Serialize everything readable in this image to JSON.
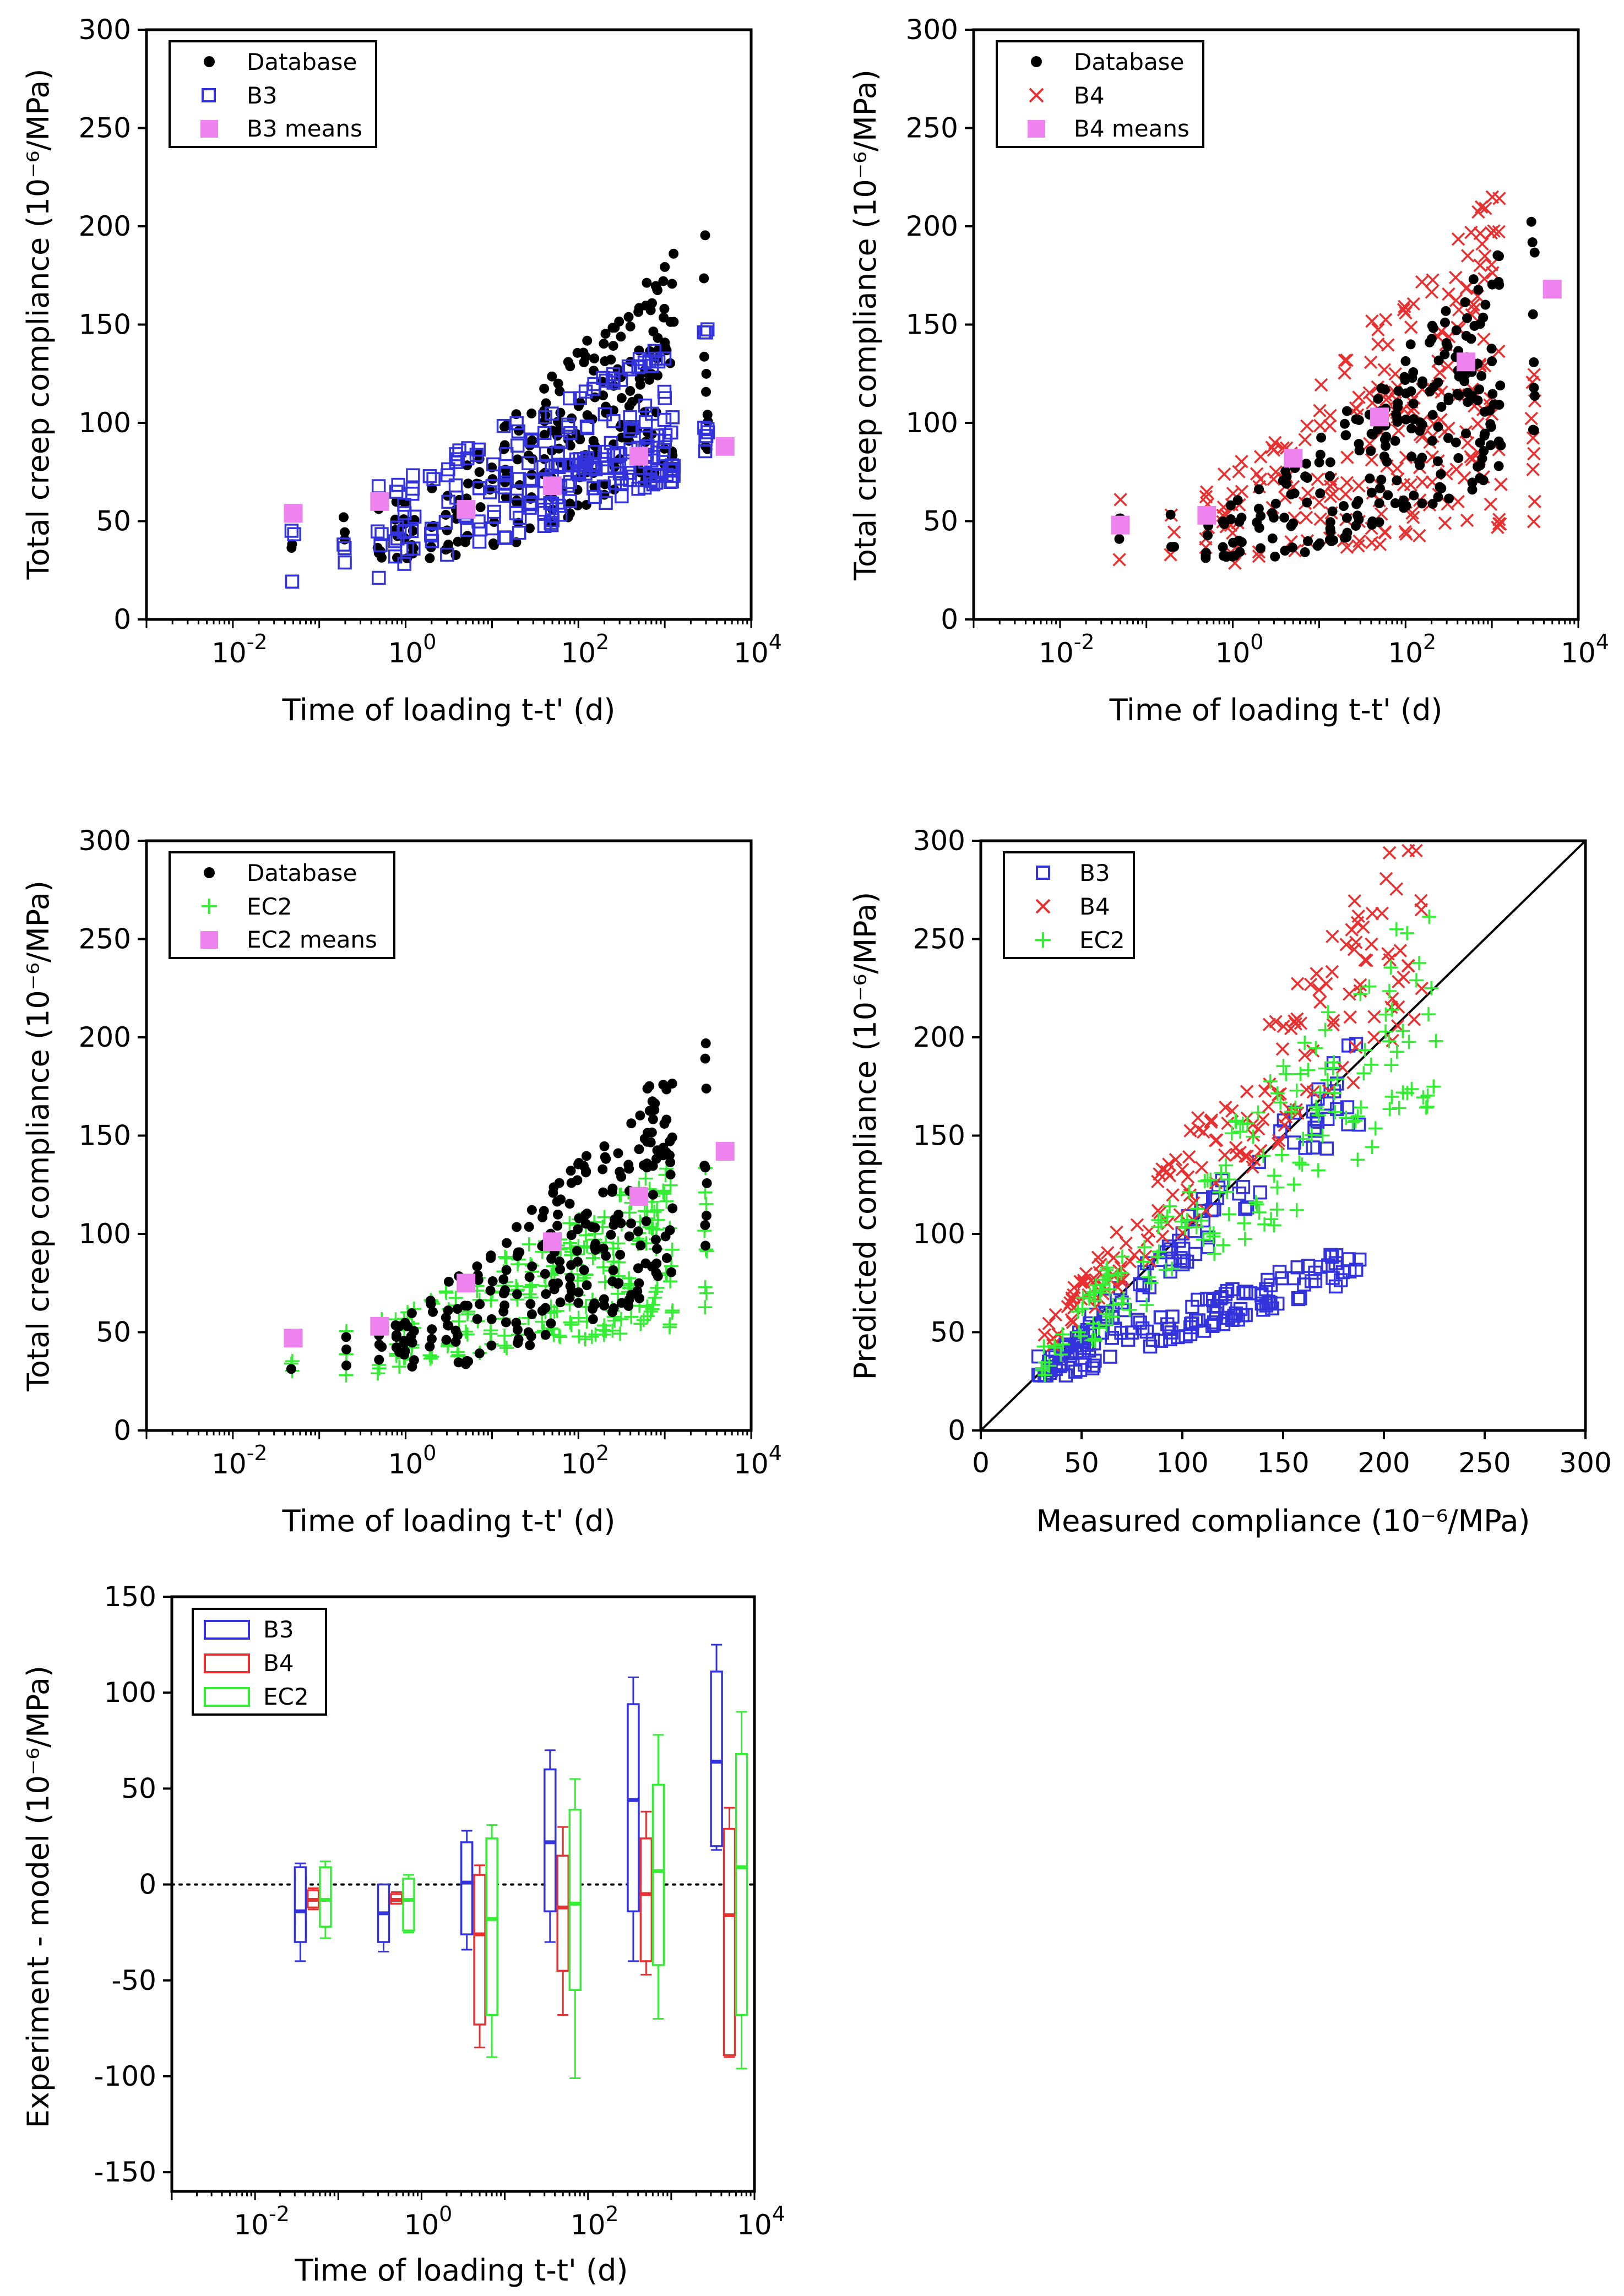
{
  "figure": {
    "marker_colors": {
      "database": "#000000",
      "B3": "#3333dd",
      "B4": "#e83030",
      "EC2": "#33ee33",
      "means": "#ee82ee"
    }
  },
  "chart_data": [
    {
      "id": "panel-a",
      "type": "scatter",
      "xscale": "log",
      "xlim": [
        0.001,
        10000
      ],
      "ylim": [
        0,
        300
      ],
      "xlabel": "Time of loading t-t' (d)",
      "ylabel": "Total creep compliance (10⁻⁶/MPa)",
      "yticks": [
        0,
        50,
        100,
        150,
        200,
        250,
        300
      ],
      "xticks": [
        {
          "value": 0.01,
          "base": "10",
          "exp": "-2"
        },
        {
          "value": 1,
          "base": "10",
          "exp": "0"
        },
        {
          "value": 100,
          "base": "10",
          "exp": "2"
        },
        {
          "value": 10000,
          "base": "10",
          "exp": "4"
        }
      ],
      "legend_position": "top-left",
      "model": "B3",
      "series": [
        {
          "name": "Database",
          "marker": "dot",
          "color": "#000000"
        },
        {
          "name": "B3",
          "marker": "open-square",
          "color": "#3333dd"
        },
        {
          "name": "B3 means",
          "marker": "filled-square",
          "color": "#ee82ee",
          "points": [
            [
              0.05,
              54
            ],
            [
              0.5,
              60
            ],
            [
              5,
              56
            ],
            [
              50,
              68
            ],
            [
              500,
              83
            ],
            [
              5000,
              88
            ]
          ]
        }
      ]
    },
    {
      "id": "panel-b",
      "type": "scatter",
      "xscale": "log",
      "xlim": [
        0.001,
        10000
      ],
      "ylim": [
        0,
        300
      ],
      "xlabel": "Time of loading t-t' (d)",
      "ylabel": "Total creep compliance (10⁻⁶/MPa)",
      "yticks": [
        0,
        50,
        100,
        150,
        200,
        250,
        300
      ],
      "xticks": [
        {
          "value": 0.01,
          "base": "10",
          "exp": "-2"
        },
        {
          "value": 1,
          "base": "10",
          "exp": "0"
        },
        {
          "value": 100,
          "base": "10",
          "exp": "2"
        },
        {
          "value": 10000,
          "base": "10",
          "exp": "4"
        }
      ],
      "legend_position": "top-left",
      "model": "B4",
      "series": [
        {
          "name": "Database",
          "marker": "dot",
          "color": "#000000"
        },
        {
          "name": "B4",
          "marker": "x",
          "color": "#e83030"
        },
        {
          "name": "B4 means",
          "marker": "filled-square",
          "color": "#ee82ee",
          "points": [
            [
              0.05,
              48
            ],
            [
              0.5,
              53
            ],
            [
              5,
              82
            ],
            [
              50,
              103
            ],
            [
              500,
              131
            ],
            [
              5000,
              168
            ]
          ]
        }
      ]
    },
    {
      "id": "panel-c",
      "type": "scatter",
      "xscale": "log",
      "xlim": [
        0.001,
        10000
      ],
      "ylim": [
        0,
        300
      ],
      "xlabel": "Time of loading t-t' (d)",
      "ylabel": "Total creep compliance (10⁻⁶/MPa)",
      "yticks": [
        0,
        50,
        100,
        150,
        200,
        250,
        300
      ],
      "xticks": [
        {
          "value": 0.01,
          "base": "10",
          "exp": "-2"
        },
        {
          "value": 1,
          "base": "10",
          "exp": "0"
        },
        {
          "value": 100,
          "base": "10",
          "exp": "2"
        },
        {
          "value": 10000,
          "base": "10",
          "exp": "4"
        }
      ],
      "legend_position": "top-left",
      "model": "EC2",
      "series": [
        {
          "name": "Database",
          "marker": "dot",
          "color": "#000000"
        },
        {
          "name": "EC2",
          "marker": "plus",
          "color": "#33ee33"
        },
        {
          "name": "EC2 means",
          "marker": "filled-square",
          "color": "#ee82ee",
          "points": [
            [
              0.05,
              47
            ],
            [
              0.5,
              53
            ],
            [
              5,
              75
            ],
            [
              50,
              96
            ],
            [
              500,
              119
            ],
            [
              5000,
              142
            ]
          ]
        }
      ]
    },
    {
      "id": "panel-d",
      "type": "scatter",
      "xscale": "linear",
      "xlim": [
        0,
        300
      ],
      "ylim": [
        0,
        300
      ],
      "xlabel": "Measured compliance (10⁻⁶/MPa)",
      "ylabel": "Predicted compliance (10⁻⁶/MPa)",
      "yticks": [
        0,
        50,
        100,
        150,
        200,
        250,
        300
      ],
      "xticks": [
        0,
        50,
        100,
        150,
        200,
        250,
        300
      ],
      "identity_line": true,
      "legend_position": "top-left",
      "series": [
        {
          "name": "B3",
          "marker": "open-square",
          "color": "#3333dd"
        },
        {
          "name": "B4",
          "marker": "x",
          "color": "#e83030"
        },
        {
          "name": "EC2",
          "marker": "plus",
          "color": "#33ee33"
        }
      ]
    },
    {
      "id": "panel-e",
      "type": "box",
      "xscale": "log",
      "xlim": [
        0.001,
        10000
      ],
      "ylim": [
        -160,
        150
      ],
      "xlabel": "Time of loading t-t' (d)",
      "ylabel": "Experiment - model (10⁻⁶/MPa)",
      "yticks": [
        -150,
        -100,
        -50,
        0,
        50,
        100,
        150
      ],
      "xticks": [
        {
          "value": 0.01,
          "base": "10",
          "exp": "-2"
        },
        {
          "value": 1,
          "base": "10",
          "exp": "0"
        },
        {
          "value": 100,
          "base": "10",
          "exp": "2"
        },
        {
          "value": 10000,
          "base": "10",
          "exp": "4"
        }
      ],
      "zero_line": true,
      "legend_position": "top-left",
      "series": [
        {
          "name": "B3",
          "color": "#3333dd",
          "boxes": [
            {
              "x": 0.035,
              "min": -40,
              "q1": -30,
              "median": -14,
              "q3": 9,
              "max": 11
            },
            {
              "x": 0.35,
              "min": -35,
              "q1": -30,
              "median": -15,
              "q3": 0,
              "max": 0
            },
            {
              "x": 3.5,
              "min": -34,
              "q1": -26,
              "median": 1,
              "q3": 22,
              "max": 28
            },
            {
              "x": 35,
              "min": -30,
              "q1": -14,
              "median": 22,
              "q3": 60,
              "max": 70
            },
            {
              "x": 350,
              "min": -40,
              "q1": -14,
              "median": 44,
              "q3": 94,
              "max": 108
            },
            {
              "x": 3500,
              "min": 18,
              "q1": 20,
              "median": 64,
              "q3": 111,
              "max": 125
            }
          ]
        },
        {
          "name": "B4",
          "color": "#e83030",
          "boxes": [
            {
              "x": 0.05,
              "min": -13,
              "q1": -12,
              "median": -8,
              "q3": -3,
              "max": -2
            },
            {
              "x": 0.5,
              "min": -10,
              "q1": -10,
              "median": -8,
              "q3": -5,
              "max": -4
            },
            {
              "x": 5,
              "min": -85,
              "q1": -73,
              "median": -26,
              "q3": 5,
              "max": 10
            },
            {
              "x": 50,
              "min": -68,
              "q1": -45,
              "median": -12,
              "q3": 15,
              "max": 30
            },
            {
              "x": 500,
              "min": -47,
              "q1": -40,
              "median": -5,
              "q3": 24,
              "max": 38
            },
            {
              "x": 5000,
              "min": -90,
              "q1": -89,
              "median": -16,
              "q3": 29,
              "max": 40
            }
          ]
        },
        {
          "name": "EC2",
          "color": "#33ee33",
          "boxes": [
            {
              "x": 0.07,
              "min": -28,
              "q1": -22,
              "median": -8,
              "q3": 9,
              "max": 12
            },
            {
              "x": 0.7,
              "min": -25,
              "q1": -24,
              "median": -8,
              "q3": 3,
              "max": 5
            },
            {
              "x": 7,
              "min": -90,
              "q1": -68,
              "median": -18,
              "q3": 24,
              "max": 31
            },
            {
              "x": 70,
              "min": -101,
              "q1": -55,
              "median": -10,
              "q3": 39,
              "max": 55
            },
            {
              "x": 700,
              "min": -70,
              "q1": -42,
              "median": 7,
              "q3": 52,
              "max": 78
            },
            {
              "x": 7000,
              "min": -96,
              "q1": -68,
              "median": 9,
              "q3": 68,
              "max": 90
            }
          ]
        }
      ]
    }
  ]
}
